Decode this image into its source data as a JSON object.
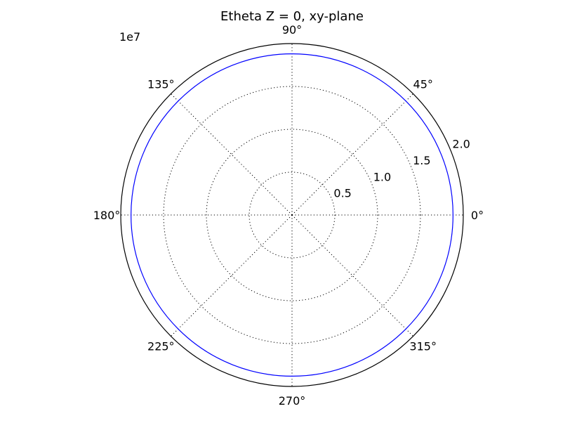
{
  "chart_data": {
    "type": "line",
    "projection": "polar",
    "title": "Etheta Z = 0, xy-plane",
    "offset_text": "1e7",
    "angular_ticks": [
      "0°",
      "45°",
      "90°",
      "135°",
      "180°",
      "225°",
      "270°",
      "315°"
    ],
    "angular_tick_values": [
      0,
      45,
      90,
      135,
      180,
      225,
      270,
      315
    ],
    "radial_ticks": [
      "0.5",
      "1.0",
      "1.5",
      "2.0"
    ],
    "radial_tick_values": [
      0.5,
      1.0,
      1.5,
      2.0
    ],
    "rlim": [
      0,
      2.0
    ],
    "grid": true,
    "series": [
      {
        "color": "#0000ff",
        "theta_deg": [
          0,
          30,
          60,
          90,
          120,
          150,
          180,
          210,
          240,
          270,
          300,
          330,
          360
        ],
        "r": [
          1.88,
          1.88,
          1.88,
          1.88,
          1.88,
          1.88,
          1.88,
          1.88,
          1.88,
          1.88,
          1.88,
          1.88,
          1.88
        ]
      }
    ]
  }
}
